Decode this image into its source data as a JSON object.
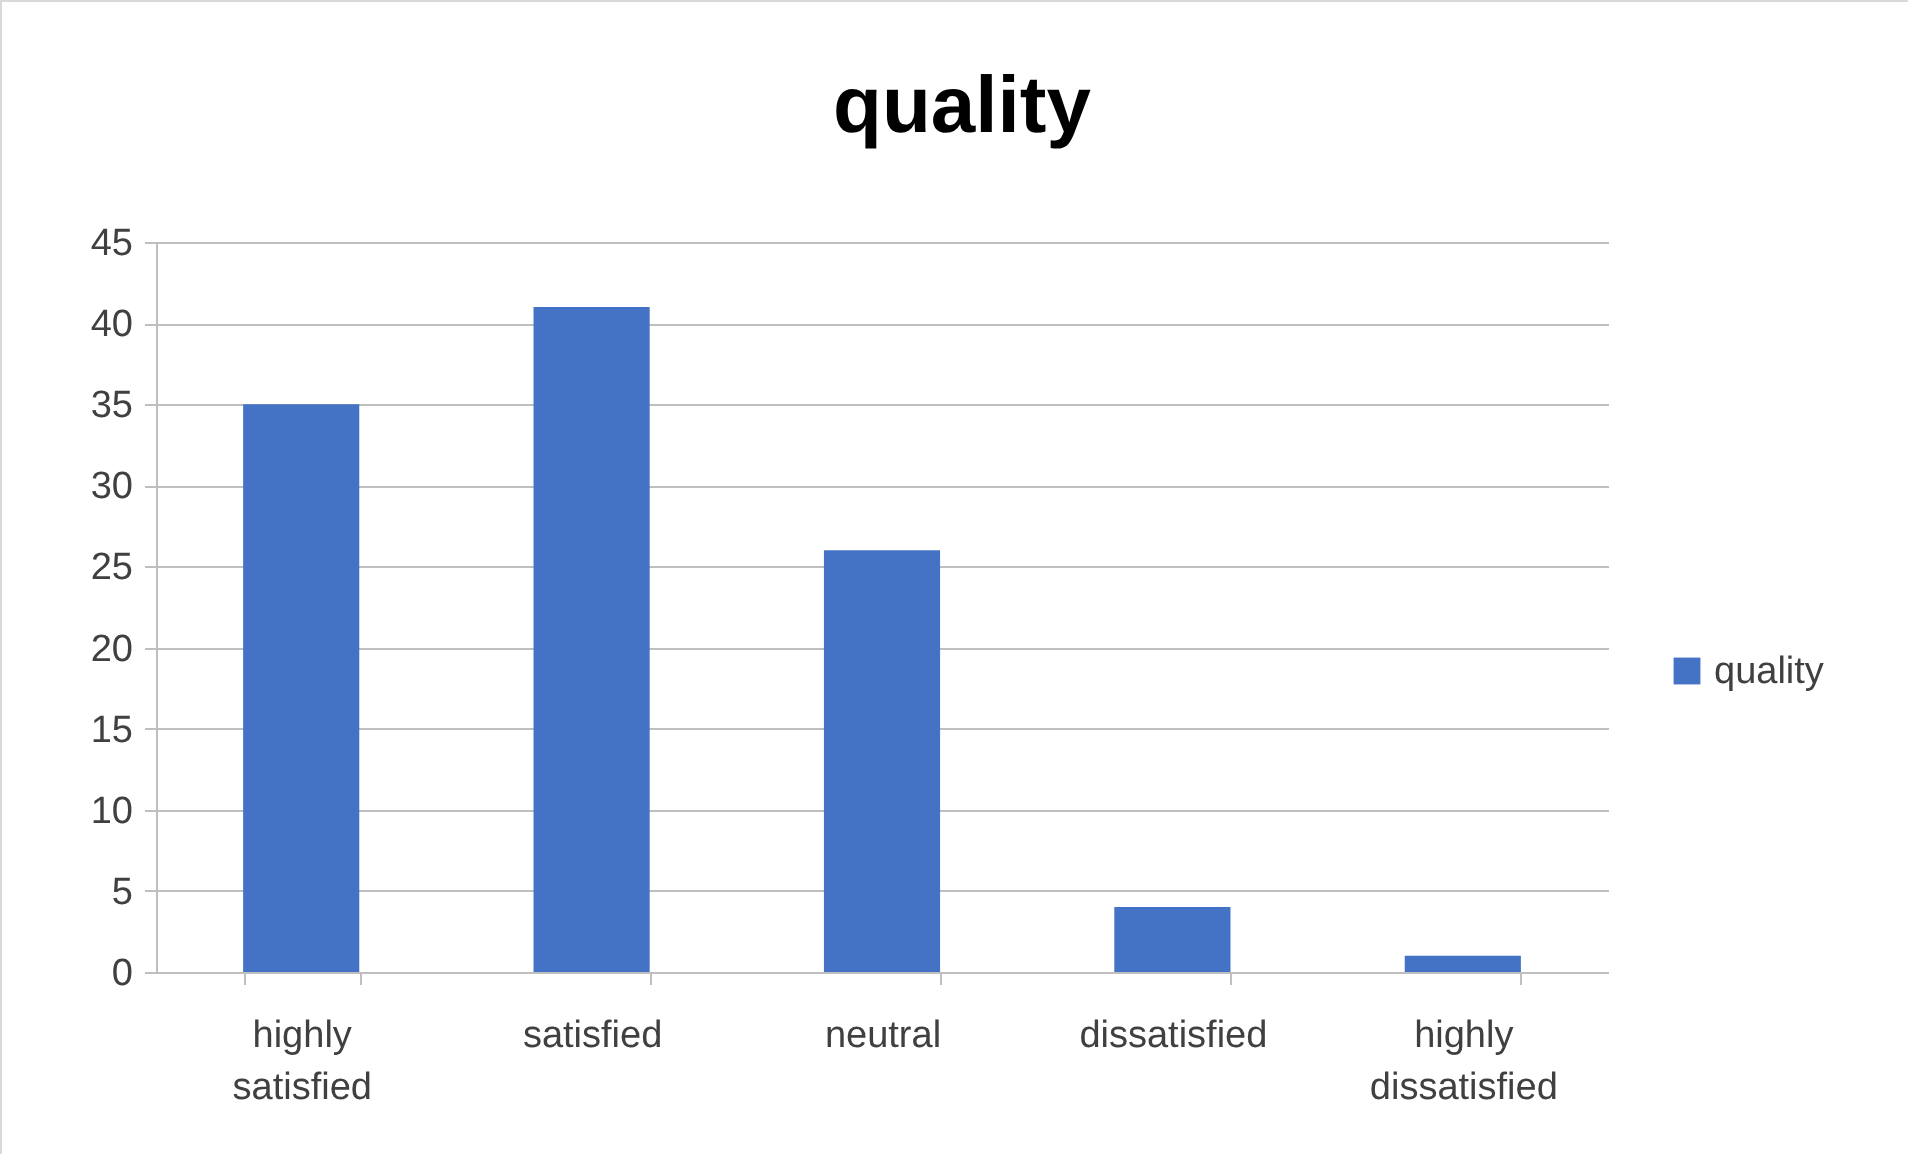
{
  "chart_data": {
    "type": "bar",
    "title": "quality",
    "categories": [
      "highly satisfied",
      "satisfied",
      "neutral",
      "dissatisfied",
      "highly dissatisfied"
    ],
    "series": [
      {
        "name": "quality",
        "color": "#4472c4",
        "values": [
          35,
          41,
          26,
          4,
          1
        ]
      }
    ],
    "ylim": [
      0,
      45
    ],
    "yticks": [
      0,
      5,
      10,
      15,
      20,
      25,
      30,
      35,
      40,
      45
    ],
    "grid": "y",
    "legend": "right"
  }
}
